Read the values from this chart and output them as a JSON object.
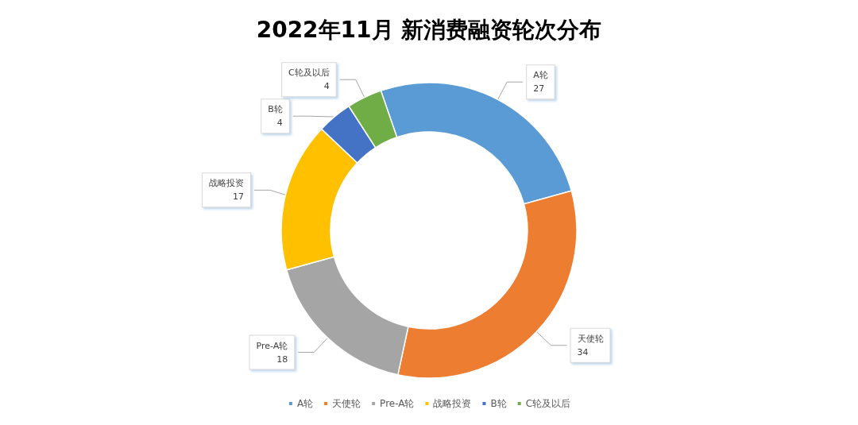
{
  "chart_data": {
    "type": "donut",
    "title": "2022年11月 新消费融资轮次分布",
    "categories": [
      "A轮",
      "天使轮",
      "Pre-A轮",
      "战略投资",
      "B轮",
      "C轮及以后"
    ],
    "values": [
      27,
      34,
      18,
      17,
      4,
      4
    ],
    "colors": [
      "#5b9bd5",
      "#ed7d31",
      "#a5a5a5",
      "#ffc000",
      "#4472c4",
      "#70ad47"
    ],
    "data_labels": true,
    "legend": "bottom"
  }
}
